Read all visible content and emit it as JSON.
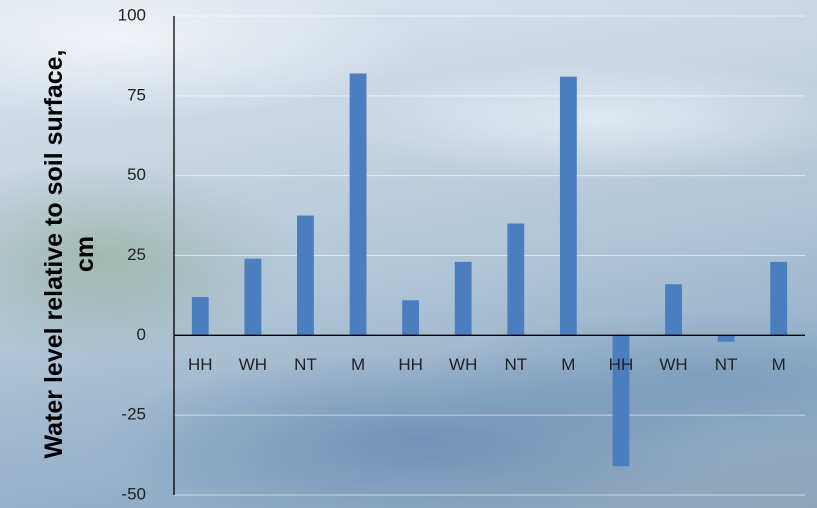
{
  "chart_data": {
    "type": "bar",
    "ylabel": "Water level relative to soil surface, cm",
    "categories": [
      "HH",
      "WH",
      "NT",
      "M",
      "HH",
      "WH",
      "NT",
      "M",
      "HH",
      "WH",
      "NT",
      "M"
    ],
    "values": [
      12,
      24,
      37.5,
      82,
      11,
      23,
      35,
      81,
      -41,
      16,
      -2,
      23
    ],
    "color": "#4a7ebf",
    "ylim": [
      -50,
      100
    ],
    "yticks": [
      -50,
      -25,
      0,
      25,
      50,
      75,
      100
    ],
    "grid": true
  }
}
